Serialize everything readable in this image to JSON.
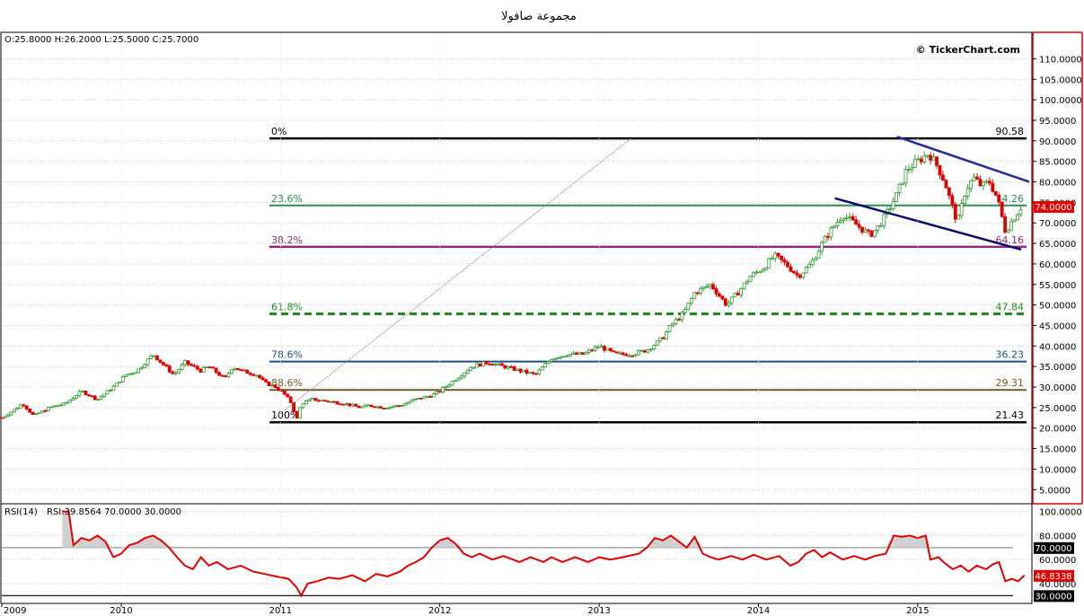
{
  "title": "مجموعة صافولا",
  "ohlc_text": "O:25.8000 H:26.2000 L:25.5000 C:25.7000",
  "watermark": "© TickerChart.com",
  "colors": {
    "up": "#2e9a2e",
    "down": "#e00000",
    "rsi_line": "#e00000",
    "price_badge": "#e00000",
    "fib_0": "#000000",
    "fib_236": "#2e8b57",
    "fib_382": "#8b2a7a",
    "fib_618": "#1e8c1e",
    "fib_786": "#1f4e8c",
    "fib_886": "#6b5a2a",
    "fib_100": "#000000",
    "channel": "#2a2a9a",
    "frame_red": "#e00000"
  },
  "chart_data": [
    {
      "type": "candlestick",
      "name": "price",
      "y_axis_ticks": [
        "110.0000",
        "105.0000",
        "100.0000",
        "95.0000",
        "90.0000",
        "85.0000",
        "80.0000",
        "75.0000",
        "70.0000",
        "65.0000",
        "60.0000",
        "55.0000",
        "50.0000",
        "45.0000",
        "40.0000",
        "35.0000",
        "30.0000",
        "25.0000",
        "20.0000",
        "15.0000",
        "10.0000",
        "5.0000"
      ],
      "y_axis_values": [
        110,
        105,
        100,
        95,
        90,
        85,
        80,
        75,
        70,
        65,
        60,
        55,
        50,
        45,
        40,
        35,
        30,
        25,
        20,
        15,
        10,
        5
      ],
      "ylim": [
        2,
        116
      ],
      "xlim": [
        2009.0,
        2015.45
      ],
      "x_axis_ticks": [
        "2009",
        "2010",
        "2011",
        "2012",
        "2013",
        "2014",
        "2015"
      ],
      "x_axis_values": [
        2009.0,
        2009.75,
        2010.75,
        2011.75,
        2012.75,
        2013.75,
        2014.75
      ],
      "last_price_label": "74.0000",
      "last_price_value": 74,
      "price_path": [
        [
          2009.0,
          22.5
        ],
        [
          2009.08,
          24.5
        ],
        [
          2009.13,
          26
        ],
        [
          2009.2,
          23
        ],
        [
          2009.3,
          25
        ],
        [
          2009.4,
          26
        ],
        [
          2009.5,
          29
        ],
        [
          2009.6,
          27
        ],
        [
          2009.7,
          30
        ],
        [
          2009.78,
          33
        ],
        [
          2009.85,
          34
        ],
        [
          2009.95,
          38
        ],
        [
          2010.0,
          36
        ],
        [
          2010.08,
          33
        ],
        [
          2010.15,
          36
        ],
        [
          2010.25,
          34
        ],
        [
          2010.3,
          35
        ],
        [
          2010.4,
          32
        ],
        [
          2010.45,
          35
        ],
        [
          2010.5,
          34
        ],
        [
          2010.6,
          33
        ],
        [
          2010.65,
          31
        ],
        [
          2010.72,
          30
        ],
        [
          2010.78,
          28
        ],
        [
          2010.82,
          26
        ],
        [
          2010.85,
          22
        ],
        [
          2010.88,
          26
        ],
        [
          2010.95,
          27
        ],
        [
          2011.05,
          26.5
        ],
        [
          2011.15,
          26
        ],
        [
          2011.25,
          25
        ],
        [
          2011.3,
          25.5
        ],
        [
          2011.4,
          25
        ],
        [
          2011.5,
          25.5
        ],
        [
          2011.6,
          27
        ],
        [
          2011.7,
          28
        ],
        [
          2011.75,
          29
        ],
        [
          2011.85,
          32
        ],
        [
          2011.95,
          35
        ],
        [
          2012.05,
          36
        ],
        [
          2012.15,
          35
        ],
        [
          2012.25,
          34
        ],
        [
          2012.35,
          33
        ],
        [
          2012.45,
          37
        ],
        [
          2012.55,
          38
        ],
        [
          2012.65,
          38
        ],
        [
          2012.75,
          40
        ],
        [
          2012.85,
          38
        ],
        [
          2012.95,
          38
        ],
        [
          2013.05,
          39
        ],
        [
          2013.15,
          42
        ],
        [
          2013.2,
          45
        ],
        [
          2013.28,
          48
        ],
        [
          2013.35,
          53
        ],
        [
          2013.45,
          55
        ],
        [
          2013.55,
          50
        ],
        [
          2013.62,
          53
        ],
        [
          2013.7,
          57
        ],
        [
          2013.78,
          59
        ],
        [
          2013.85,
          62
        ],
        [
          2013.92,
          60
        ],
        [
          2014.0,
          57
        ],
        [
          2014.08,
          60
        ],
        [
          2014.15,
          65
        ],
        [
          2014.2,
          68
        ],
        [
          2014.28,
          72
        ],
        [
          2014.35,
          70
        ],
        [
          2014.45,
          67
        ],
        [
          2014.5,
          69
        ],
        [
          2014.55,
          72
        ],
        [
          2014.62,
          77
        ],
        [
          2014.68,
          83
        ],
        [
          2014.75,
          85
        ],
        [
          2014.82,
          87
        ],
        [
          2014.87,
          84
        ],
        [
          2014.92,
          80
        ],
        [
          2014.95,
          76
        ],
        [
          2015.0,
          70
        ],
        [
          2015.05,
          78
        ],
        [
          2015.1,
          81
        ],
        [
          2015.15,
          79
        ],
        [
          2015.2,
          80
        ],
        [
          2015.25,
          76
        ],
        [
          2015.3,
          68
        ],
        [
          2015.35,
          71
        ],
        [
          2015.4,
          74
        ]
      ],
      "fibonacci": [
        {
          "pct": "0%",
          "value_label": "90.58",
          "value": 90.58,
          "color_key": "fib_0",
          "dashed": false,
          "width": 2.5
        },
        {
          "pct": "23.6%",
          "value_label": "74.26",
          "value": 74.26,
          "color_key": "fib_236",
          "dashed": false,
          "width": 2
        },
        {
          "pct": "38.2%",
          "value_label": "64.16",
          "value": 64.16,
          "color_key": "fib_382",
          "dashed": false,
          "width": 2.5
        },
        {
          "pct": "61.8%",
          "value_label": "47.84",
          "value": 47.84,
          "color_key": "fib_618",
          "dashed": true,
          "width": 3
        },
        {
          "pct": "78.6%",
          "value_label": "36.23",
          "value": 36.23,
          "color_key": "fib_786",
          "dashed": false,
          "width": 2
        },
        {
          "pct": "88.6%",
          "value_label": "29.31",
          "value": 29.31,
          "color_key": "fib_886",
          "dashed": false,
          "width": 2
        },
        {
          "pct": "100%",
          "value_label": "21.43",
          "value": 21.43,
          "color_key": "fib_100",
          "dashed": false,
          "width": 2.5
        }
      ],
      "fib_x_start": 2010.68,
      "diagonal": [
        [
          2010.68,
          21.43
        ],
        [
          2012.95,
          90.58
        ]
      ],
      "channel_upper": [
        [
          2014.62,
          91
        ],
        [
          2015.45,
          80
        ]
      ],
      "channel_lower": [
        [
          2014.23,
          76
        ],
        [
          2015.4,
          63.5
        ]
      ]
    },
    {
      "type": "line",
      "name": "RSI(14)",
      "label": "RSI(14)",
      "value_text": "RSI:39.8564 70.0000 30.0000",
      "ylim": [
        25,
        105
      ],
      "y_axis_ticks": [
        "100.0000",
        "80.0000",
        "60.0000",
        "40.0000"
      ],
      "y_axis_values": [
        100,
        80,
        60,
        40
      ],
      "levels": [
        {
          "value": 70,
          "label": "70.0000"
        },
        {
          "value": 30,
          "label": "30.0000"
        }
      ],
      "current_label": "46.8338",
      "current_value": 46.83,
      "series": [
        [
          2009.38,
          100
        ],
        [
          2009.42,
          100
        ],
        [
          2009.45,
          72
        ],
        [
          2009.5,
          78
        ],
        [
          2009.55,
          76
        ],
        [
          2009.6,
          80
        ],
        [
          2009.65,
          75
        ],
        [
          2009.7,
          62
        ],
        [
          2009.75,
          65
        ],
        [
          2009.8,
          72
        ],
        [
          2009.85,
          74
        ],
        [
          2009.9,
          78
        ],
        [
          2009.95,
          80
        ],
        [
          2010.0,
          76
        ],
        [
          2010.05,
          70
        ],
        [
          2010.1,
          62
        ],
        [
          2010.15,
          55
        ],
        [
          2010.2,
          52
        ],
        [
          2010.25,
          62
        ],
        [
          2010.3,
          55
        ],
        [
          2010.35,
          58
        ],
        [
          2010.42,
          52
        ],
        [
          2010.5,
          55
        ],
        [
          2010.58,
          50
        ],
        [
          2010.65,
          48
        ],
        [
          2010.72,
          46
        ],
        [
          2010.8,
          44
        ],
        [
          2010.85,
          37
        ],
        [
          2010.88,
          30
        ],
        [
          2010.92,
          40
        ],
        [
          2010.98,
          42
        ],
        [
          2011.05,
          45
        ],
        [
          2011.12,
          44
        ],
        [
          2011.2,
          47
        ],
        [
          2011.28,
          42
        ],
        [
          2011.35,
          48
        ],
        [
          2011.42,
          46
        ],
        [
          2011.5,
          50
        ],
        [
          2011.55,
          55
        ],
        [
          2011.6,
          58
        ],
        [
          2011.65,
          62
        ],
        [
          2011.7,
          70
        ],
        [
          2011.75,
          76
        ],
        [
          2011.8,
          78
        ],
        [
          2011.85,
          73
        ],
        [
          2011.9,
          65
        ],
        [
          2011.95,
          62
        ],
        [
          2012.0,
          65
        ],
        [
          2012.08,
          60
        ],
        [
          2012.15,
          63
        ],
        [
          2012.25,
          58
        ],
        [
          2012.32,
          62
        ],
        [
          2012.4,
          58
        ],
        [
          2012.45,
          62
        ],
        [
          2012.52,
          58
        ],
        [
          2012.6,
          62
        ],
        [
          2012.68,
          58
        ],
        [
          2012.75,
          62
        ],
        [
          2012.82,
          60
        ],
        [
          2012.9,
          62
        ],
        [
          2013.0,
          65
        ],
        [
          2013.05,
          70
        ],
        [
          2013.1,
          78
        ],
        [
          2013.15,
          76
        ],
        [
          2013.2,
          80
        ],
        [
          2013.25,
          75
        ],
        [
          2013.3,
          70
        ],
        [
          2013.35,
          79
        ],
        [
          2013.4,
          65
        ],
        [
          2013.45,
          62
        ],
        [
          2013.5,
          60
        ],
        [
          2013.58,
          63
        ],
        [
          2013.65,
          60
        ],
        [
          2013.72,
          64
        ],
        [
          2013.8,
          60
        ],
        [
          2013.88,
          63
        ],
        [
          2013.95,
          55
        ],
        [
          2014.0,
          58
        ],
        [
          2014.05,
          65
        ],
        [
          2014.1,
          68
        ],
        [
          2014.15,
          62
        ],
        [
          2014.2,
          66
        ],
        [
          2014.28,
          60
        ],
        [
          2014.35,
          63
        ],
        [
          2014.42,
          60
        ],
        [
          2014.48,
          63
        ],
        [
          2014.55,
          65
        ],
        [
          2014.6,
          80
        ],
        [
          2014.65,
          79
        ],
        [
          2014.7,
          80
        ],
        [
          2014.75,
          78
        ],
        [
          2014.8,
          80
        ],
        [
          2014.83,
          60
        ],
        [
          2014.88,
          62
        ],
        [
          2014.92,
          57
        ],
        [
          2014.97,
          52
        ],
        [
          2015.02,
          55
        ],
        [
          2015.07,
          50
        ],
        [
          2015.12,
          55
        ],
        [
          2015.18,
          52
        ],
        [
          2015.22,
          56
        ],
        [
          2015.26,
          58
        ],
        [
          2015.3,
          42
        ],
        [
          2015.34,
          44
        ],
        [
          2015.38,
          42
        ],
        [
          2015.42,
          46.8
        ]
      ]
    }
  ]
}
